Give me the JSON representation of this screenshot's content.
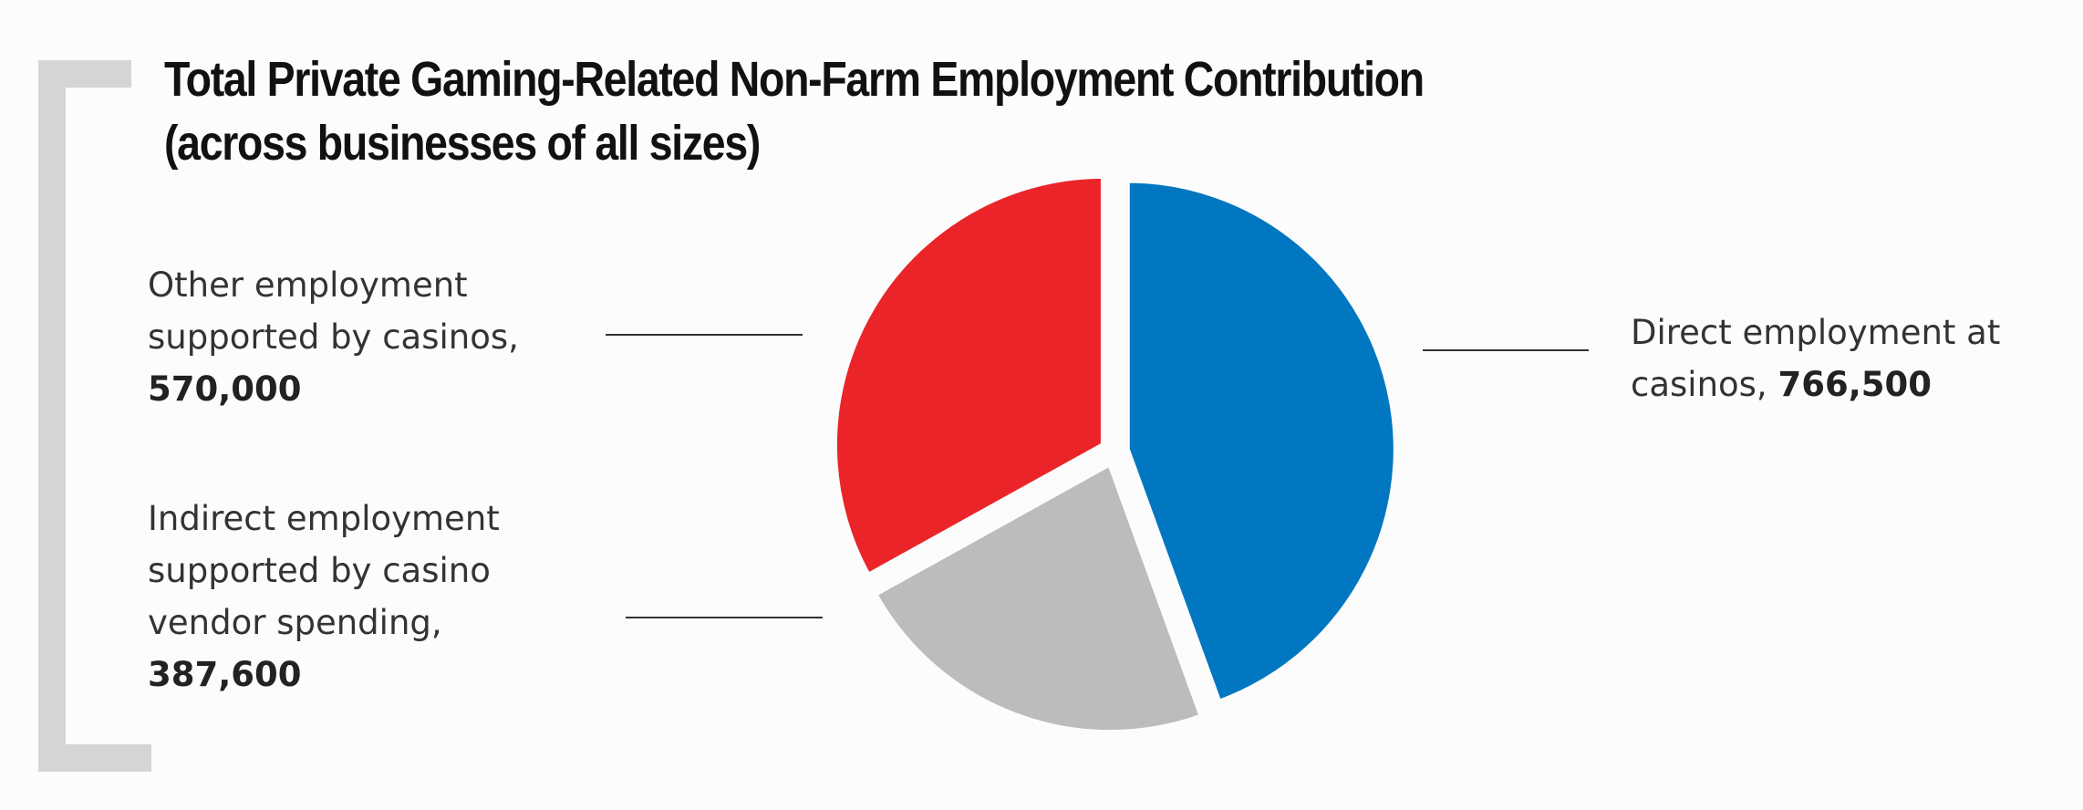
{
  "chart_data": {
    "type": "pie",
    "title": "Total Private Gaming-Related Non-Farm Employment Contribution",
    "subtitle": "(across businesses of all sizes)",
    "unit": "employees",
    "slices": [
      {
        "label": "Direct employment at casinos,",
        "value": 766500,
        "value_label": "766,500",
        "color": "#0077c0"
      },
      {
        "label": "Indirect employment supported by casino vendor spending,",
        "value": 387600,
        "value_label": "387,600",
        "color": "#bbbcbe"
      },
      {
        "label": "Other employment supported by casinos,",
        "value": 570000,
        "value_label": "570,000",
        "color": "#ea2428"
      }
    ],
    "label_lines": {
      "direct": [
        "Direct employment at",
        "casinos,"
      ],
      "indirect": [
        "Indirect employment",
        "supported by casino",
        "vendor spending,"
      ],
      "other": [
        "Other employment",
        "supported by casinos,"
      ]
    }
  },
  "colors": {
    "bracket": "#d4d5d7",
    "leader_line": "#333333"
  }
}
